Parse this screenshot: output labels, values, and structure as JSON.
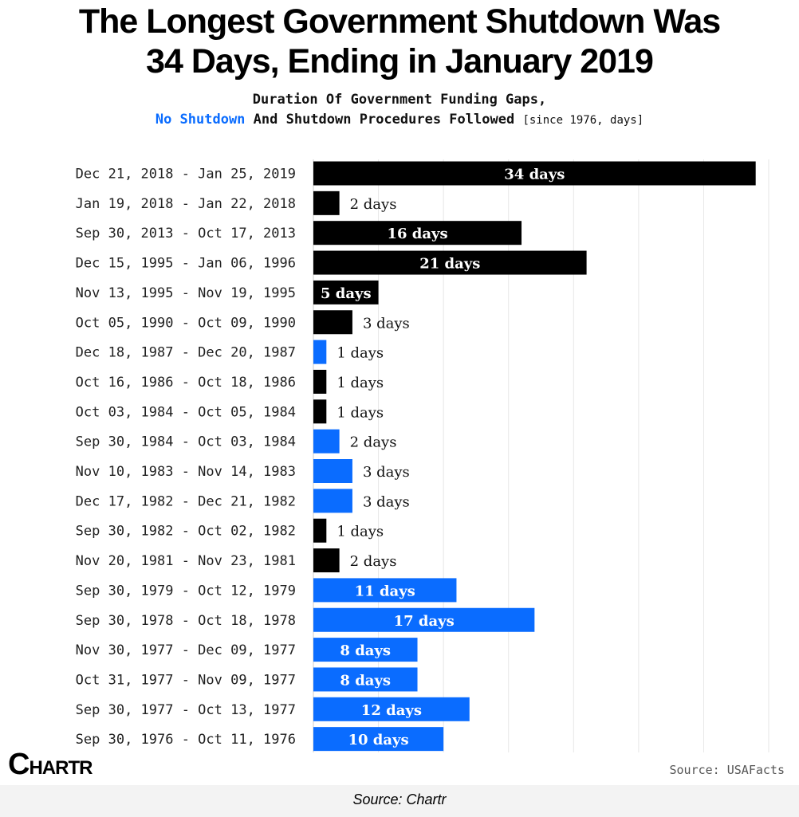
{
  "header": {
    "title_line1": "The Longest Government Shutdown Was",
    "title_line2": "34 Days, Ending in January 2019",
    "subtitle_line1": "Duration Of Government Funding Gaps,",
    "subtitle_legend_blue": "No Shutdown",
    "subtitle_legend_rest": "And Shutdown Procedures Followed",
    "subtitle_units": "[since 1976, days]"
  },
  "colors": {
    "shutdown": "#000000",
    "no_shutdown": "#0a6cff",
    "grid": "#e6e6e6"
  },
  "chart_data": {
    "type": "bar",
    "orientation": "horizontal",
    "categories": [
      "Dec 21, 2018 - Jan 25, 2019",
      "Jan 19, 2018 - Jan 22, 2018",
      "Sep 30, 2013 - Oct 17, 2013",
      "Dec 15, 1995 - Jan 06, 1996",
      "Nov 13, 1995 - Nov 19, 1995",
      "Oct 05, 1990 - Oct 09, 1990",
      "Dec 18, 1987 - Dec 20, 1987",
      "Oct 16, 1986 - Oct 18, 1986",
      "Oct 03, 1984 - Oct 05, 1984",
      "Sep 30, 1984 - Oct 03, 1984",
      "Nov 10, 1983 - Nov 14, 1983",
      "Dec 17, 1982 - Dec 21, 1982",
      "Sep 30, 1982 - Oct 02, 1982",
      "Nov 20, 1981 - Nov 23, 1981",
      "Sep 30, 1979 - Oct 12, 1979",
      "Sep 30, 1978 - Oct 18, 1978",
      "Nov 30, 1977 - Dec 09, 1977",
      "Oct 31, 1977 - Nov 09, 1977",
      "Sep 30, 1977 - Oct 13, 1977",
      "Sep 30, 1976 - Oct 11, 1976"
    ],
    "values": [
      34,
      2,
      16,
      21,
      5,
      3,
      1,
      1,
      1,
      2,
      3,
      3,
      1,
      2,
      11,
      17,
      8,
      8,
      12,
      10
    ],
    "labels": [
      "34 days",
      "2 days",
      "16 days",
      "21 days",
      "5 days",
      "3 days",
      "1 days",
      "1 days",
      "1 days",
      "2 days",
      "3 days",
      "3 days",
      "1 days",
      "2 days",
      "11 days",
      "17 days",
      "8 days",
      "8 days",
      "12 days",
      "10 days"
    ],
    "no_shutdown": [
      false,
      false,
      false,
      false,
      false,
      false,
      true,
      false,
      false,
      true,
      true,
      true,
      false,
      false,
      true,
      true,
      true,
      true,
      true,
      true
    ],
    "xlim": [
      0,
      35
    ],
    "grid": true,
    "grid_step": 5
  },
  "logo": {
    "text_big": "C",
    "text_small": "HARTR"
  },
  "source": "Source: USAFacts",
  "footer": "Source: Chartr"
}
